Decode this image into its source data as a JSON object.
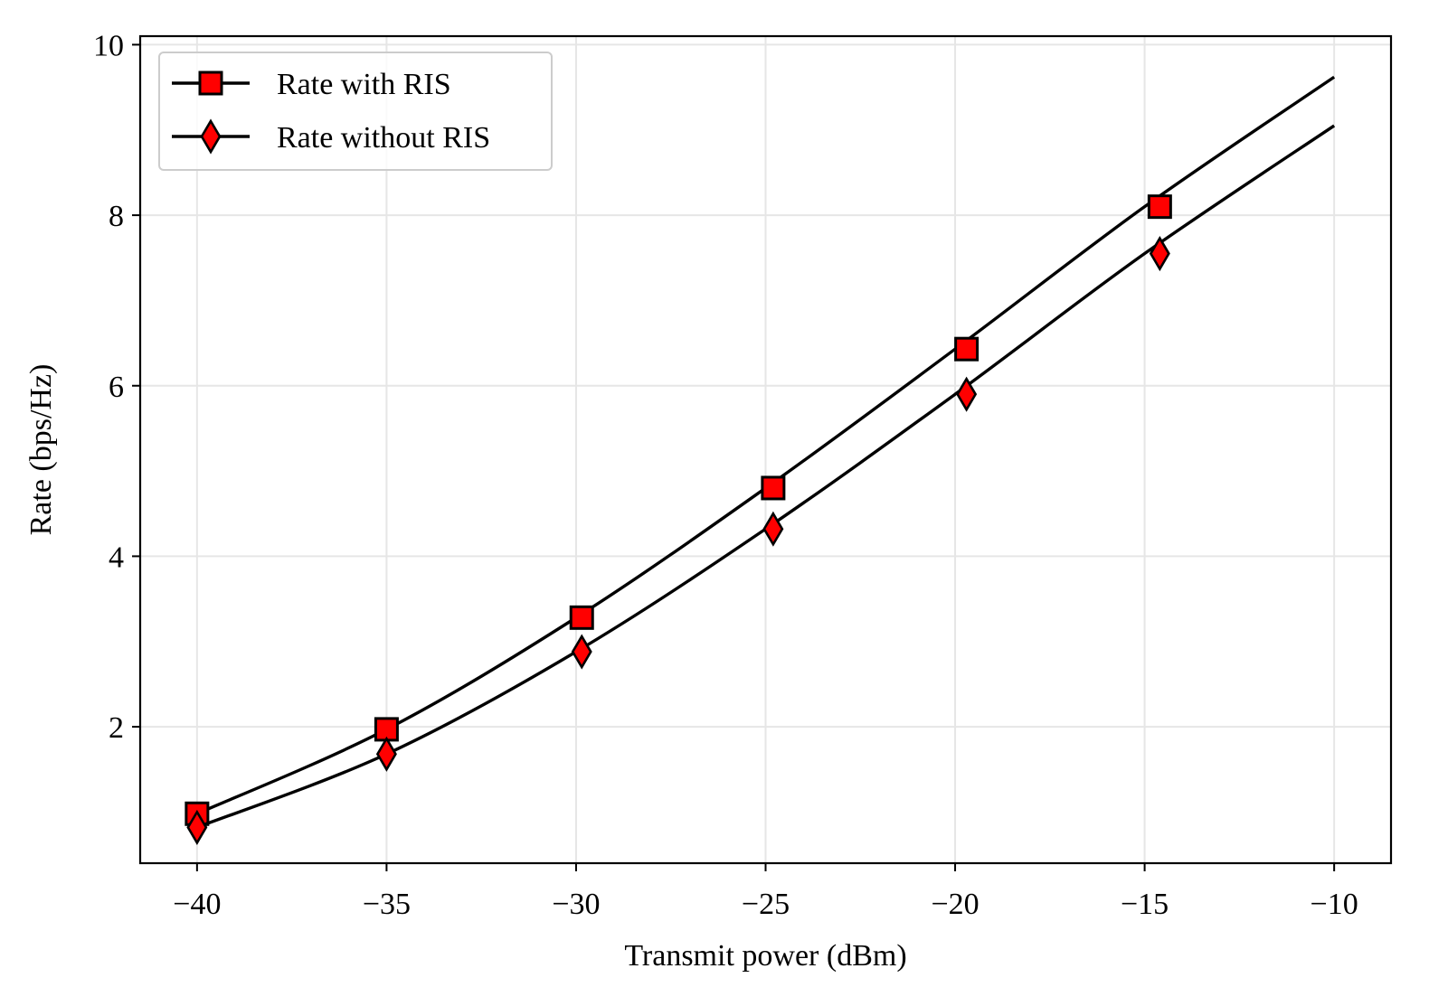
{
  "chart_data": {
    "type": "line",
    "title": "",
    "xlabel": "Transmit power (dBm)",
    "ylabel": "Rate (bps/Hz)",
    "xlim": [
      -41.5,
      -8.5
    ],
    "ylim": [
      0.4,
      10.1
    ],
    "xticks": [
      -40,
      -35,
      -30,
      -25,
      -20,
      -15,
      -10
    ],
    "xtick_labels": [
      "−40",
      "−35",
      "−30",
      "−25",
      "−20",
      "−15",
      "−10"
    ],
    "yticks": [
      2,
      4,
      6,
      8,
      10
    ],
    "ytick_labels": [
      "2",
      "4",
      "6",
      "8",
      "10"
    ],
    "grid": true,
    "legend_position": "top-left",
    "series": [
      {
        "name": "Rate with RIS",
        "marker": "square",
        "line_color": "#000000",
        "marker_face": "#ff0000",
        "x": [
          -40,
          -35,
          -30,
          -25,
          -20,
          -15,
          -10
        ],
        "y": [
          0.98,
          1.97,
          3.28,
          4.8,
          6.43,
          8.1,
          9.62
        ],
        "marker_x": [
          -40,
          -35,
          -29.85,
          -24.8,
          -19.7,
          -14.6
        ],
        "marker_y": [
          0.98,
          1.97,
          3.28,
          4.8,
          6.43,
          8.1
        ]
      },
      {
        "name": "Rate without RIS",
        "marker": "thin_diamond",
        "line_color": "#000000",
        "marker_face": "#ff0000",
        "x": [
          -40,
          -35,
          -30,
          -25,
          -20,
          -15,
          -10
        ],
        "y": [
          0.82,
          1.68,
          2.88,
          4.32,
          5.9,
          7.55,
          9.05
        ],
        "marker_x": [
          -40,
          -35,
          -29.85,
          -24.8,
          -19.7,
          -14.6
        ],
        "marker_y": [
          0.82,
          1.68,
          2.88,
          4.32,
          5.9,
          7.55
        ]
      }
    ]
  }
}
